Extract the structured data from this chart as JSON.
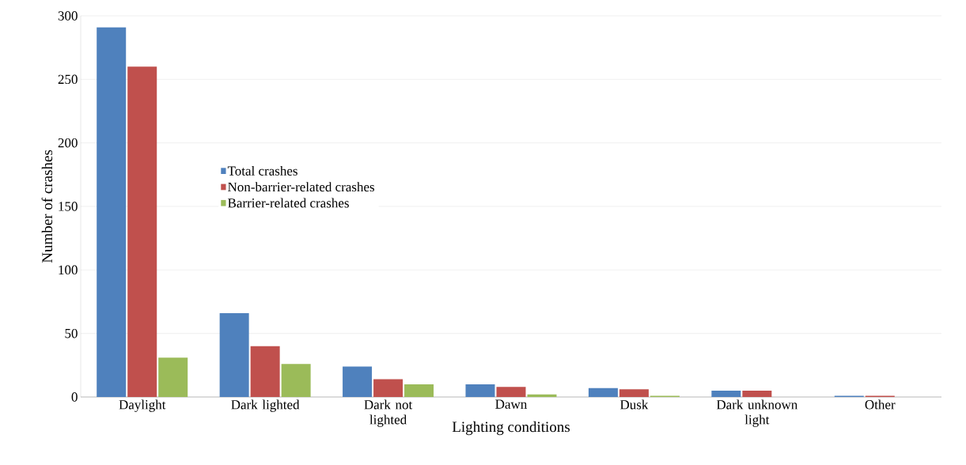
{
  "chart_data": {
    "type": "bar",
    "xlabel": "Lighting conditions",
    "ylabel": "Number of crashes",
    "categories": [
      "Daylight",
      "Dark lighted",
      "Dark not lighted",
      "Dawn",
      "Dusk",
      "Dark unknown light",
      "Other"
    ],
    "series": [
      {
        "name": "Total crashes",
        "color": "#4f81bd",
        "values": [
          291,
          66,
          24,
          10,
          7,
          5,
          1
        ]
      },
      {
        "name": "Non-barrier-related crashes",
        "color": "#c0504d",
        "values": [
          260,
          40,
          14,
          8,
          6,
          5,
          1
        ]
      },
      {
        "name": "Barrier-related crashes",
        "color": "#9bbb59",
        "values": [
          31,
          26,
          10,
          2,
          1,
          0,
          0
        ]
      }
    ],
    "ylim": [
      0,
      300
    ],
    "yticks": [
      0,
      50,
      100,
      150,
      200,
      250,
      300
    ],
    "grid": "y",
    "legend": "left"
  }
}
